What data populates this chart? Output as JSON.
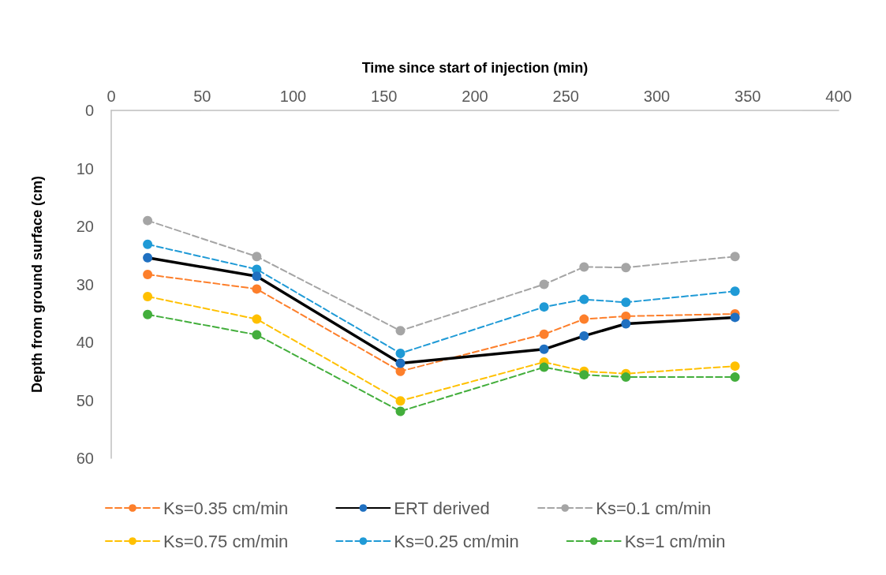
{
  "chart_data": {
    "type": "line",
    "xlabel": "Time since start of injection (min)",
    "ylabel": "Depth from ground surface (cm)",
    "x": [
      20,
      80,
      159,
      238,
      260,
      283,
      343
    ],
    "xlim": [
      0,
      400
    ],
    "xticks": [
      0,
      50,
      100,
      150,
      200,
      250,
      300,
      350,
      400
    ],
    "ylim": [
      60,
      0
    ],
    "yticks": [
      0,
      10,
      20,
      30,
      40,
      50,
      60
    ],
    "grid": false,
    "legend": "bottom",
    "marker": "circle",
    "series": [
      {
        "name": "Ks=0.35 cm/min",
        "color": "#fd7f2b",
        "line_style": "dashed",
        "values": [
          28.3,
          30.8,
          45,
          38.6,
          36,
          35.5,
          35.1
        ]
      },
      {
        "name": "ERT derived",
        "color": "#1f70c1",
        "line_style": "solid",
        "values": [
          25.4,
          28.6,
          43.6,
          41.2,
          38.9,
          36.8,
          35.7
        ]
      },
      {
        "name": "Ks=0.1 cm/min",
        "color": "#a5a5a5",
        "line_style": "dashed",
        "values": [
          19,
          25.2,
          38,
          30,
          27,
          27.1,
          25.2
        ]
      },
      {
        "name": "Ks=0.75 cm/min",
        "color": "#ffc000",
        "line_style": "dashed",
        "values": [
          32.1,
          36,
          50.1,
          43.4,
          45,
          45.4,
          44.1
        ]
      },
      {
        "name": "Ks=0.25 cm/min",
        "color": "#1f9ad6",
        "line_style": "dashed",
        "values": [
          23.1,
          27.4,
          41.9,
          33.9,
          32.6,
          33.1,
          31.2
        ]
      },
      {
        "name": "Ks=1 cm/min",
        "color": "#43ae3c",
        "line_style": "dashed",
        "values": [
          35.2,
          38.7,
          51.9,
          44.3,
          45.6,
          46,
          46
        ]
      }
    ]
  }
}
